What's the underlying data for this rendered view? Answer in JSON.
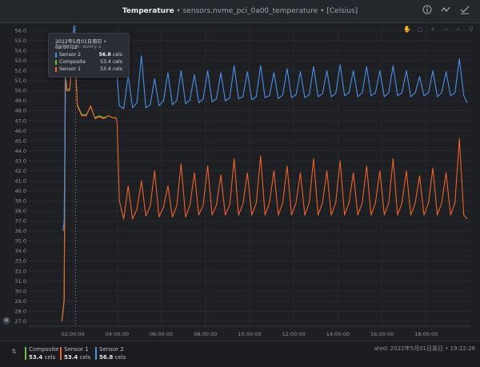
{
  "header": {
    "title": "Temperature",
    "subtitle": " • sensors.nvme_pci_0a00_temperature • [Celsius]"
  },
  "icons": {
    "info": "info-icon",
    "chart_type": "line-chart-icon",
    "check": "check-icon"
  },
  "toolbar": {
    "buttons": [
      "pan-icon",
      "selection-icon",
      "zoom-in-icon",
      "zoom-out-icon",
      "zoom-reset-icon",
      "search-icon"
    ]
  },
  "tooltip": {
    "datetime": "2022年5月01日周日 • 02:07:12",
    "collection": "Collection: every s",
    "rows": [
      {
        "name": "Sensor 2",
        "value": "56.8",
        "unit": "cels",
        "color": "#4b8fe8"
      },
      {
        "name": "Composite",
        "value": "53.4",
        "unit": "cels",
        "color": "#70c22e"
      },
      {
        "name": "Sensor 1",
        "value": "53.4",
        "unit": "cels",
        "color": "#f0622a"
      }
    ]
  },
  "legend": [
    {
      "name": "Composite",
      "value": "53.4",
      "unit": "cels",
      "color": "#70c22e"
    },
    {
      "name": "Sensor 1",
      "value": "53.4",
      "unit": "cels",
      "color": "#f0622a"
    },
    {
      "name": "Sensor 2",
      "value": "56.8",
      "unit": "cels",
      "color": "#4b8fe8"
    }
  ],
  "footer": {
    "updated": "ated: 2022年5月01日周日 • 19:22:28"
  },
  "chart_data": {
    "type": "line",
    "title": "Temperature",
    "ylabel": "",
    "xlabel": "",
    "ylim": [
      26.5,
      56.5
    ],
    "yticks": [
      27.0,
      28.0,
      29.0,
      30.0,
      31.0,
      32.0,
      33.0,
      34.0,
      35.0,
      36.0,
      37.0,
      38.0,
      39.0,
      40.0,
      41.0,
      42.0,
      43.0,
      44.0,
      45.0,
      46.0,
      47.0,
      48.0,
      49.0,
      50.0,
      51.0,
      52.0,
      53.0,
      54.0,
      55.0,
      56.0
    ],
    "xlim": [
      0.0,
      20.0
    ],
    "xticks": [
      {
        "x": 2.0,
        "label": "02:00:00"
      },
      {
        "x": 4.0,
        "label": "04:00:00"
      },
      {
        "x": 6.0,
        "label": "06:00:00"
      },
      {
        "x": 8.0,
        "label": "08:00:00"
      },
      {
        "x": 10.0,
        "label": "10:00:00"
      },
      {
        "x": 12.0,
        "label": "12:00:00"
      },
      {
        "x": 14.0,
        "label": "14:00:00"
      },
      {
        "x": 16.0,
        "label": "16:00:00"
      },
      {
        "x": 18.0,
        "label": "18:00:00"
      }
    ],
    "grid": true,
    "cursor_x": 2.12,
    "series": [
      {
        "name": "Sensor 2",
        "color": "#4b8fe8",
        "points": [
          [
            1.55,
            36
          ],
          [
            1.6,
            37
          ],
          [
            1.68,
            55
          ],
          [
            1.75,
            53
          ],
          [
            1.85,
            52
          ],
          [
            1.95,
            54.8
          ],
          [
            2.0,
            55
          ],
          [
            2.05,
            56.5
          ],
          [
            2.1,
            55.2
          ],
          [
            2.2,
            54
          ],
          [
            2.4,
            53
          ],
          [
            2.6,
            52.5
          ],
          [
            2.8,
            52.5
          ],
          [
            3.0,
            53.5
          ],
          [
            3.2,
            52
          ],
          [
            3.4,
            51.5
          ],
          [
            3.6,
            53
          ],
          [
            3.8,
            51.5
          ],
          [
            3.9,
            51.5
          ],
          [
            4.0,
            51.5
          ],
          [
            4.1,
            48.5
          ],
          [
            4.3,
            48.2
          ],
          [
            4.5,
            51.5
          ],
          [
            4.7,
            48.3
          ],
          [
            4.9,
            48.8
          ],
          [
            5.1,
            53.5
          ],
          [
            5.3,
            48.3
          ],
          [
            5.5,
            48.6
          ],
          [
            5.7,
            51.2
          ],
          [
            5.9,
            48.5
          ],
          [
            6.1,
            49
          ],
          [
            6.3,
            51.8
          ],
          [
            6.5,
            48.6
          ],
          [
            6.7,
            49
          ],
          [
            6.9,
            52
          ],
          [
            7.1,
            48.7
          ],
          [
            7.3,
            49.1
          ],
          [
            7.5,
            51.6
          ],
          [
            7.7,
            48.8
          ],
          [
            7.9,
            49.2
          ],
          [
            8.1,
            52
          ],
          [
            8.3,
            48.9
          ],
          [
            8.5,
            49.2
          ],
          [
            8.7,
            51.8
          ],
          [
            8.9,
            49
          ],
          [
            9.1,
            49.3
          ],
          [
            9.3,
            52.5
          ],
          [
            9.5,
            49.2
          ],
          [
            9.7,
            49.4
          ],
          [
            9.9,
            51.9
          ],
          [
            10.1,
            49.1
          ],
          [
            10.3,
            49.4
          ],
          [
            10.5,
            52.5
          ],
          [
            10.7,
            49.3
          ],
          [
            10.9,
            49.5
          ],
          [
            11.1,
            51.8
          ],
          [
            11.3,
            49.2
          ],
          [
            11.5,
            49.6
          ],
          [
            11.7,
            52.2
          ],
          [
            11.9,
            49.3
          ],
          [
            12.1,
            49.6
          ],
          [
            12.3,
            51.9
          ],
          [
            12.5,
            49.3
          ],
          [
            12.7,
            49.6
          ],
          [
            12.9,
            52.4
          ],
          [
            13.1,
            49.4
          ],
          [
            13.3,
            49.7
          ],
          [
            13.5,
            52.0
          ],
          [
            13.7,
            49.4
          ],
          [
            13.9,
            49.7
          ],
          [
            14.1,
            52.6
          ],
          [
            14.3,
            49.5
          ],
          [
            14.5,
            49.8
          ],
          [
            14.7,
            52.0
          ],
          [
            14.9,
            49.4
          ],
          [
            15.1,
            49.8
          ],
          [
            15.3,
            52.4
          ],
          [
            15.5,
            49.5
          ],
          [
            15.7,
            49.8
          ],
          [
            15.9,
            52.0
          ],
          [
            16.1,
            49.4
          ],
          [
            16.3,
            49.8
          ],
          [
            16.5,
            52.5
          ],
          [
            16.7,
            49.5
          ],
          [
            16.9,
            49.8
          ],
          [
            17.1,
            52.0
          ],
          [
            17.3,
            49.4
          ],
          [
            17.5,
            49.8
          ],
          [
            17.7,
            51.4
          ],
          [
            17.9,
            49.5
          ],
          [
            18.1,
            49.8
          ],
          [
            18.3,
            52.0
          ],
          [
            18.5,
            49.4
          ],
          [
            18.7,
            49.8
          ],
          [
            18.9,
            51.9
          ],
          [
            19.1,
            49.5
          ],
          [
            19.3,
            49.8
          ],
          [
            19.5,
            53.2
          ],
          [
            19.7,
            49.5
          ],
          [
            19.85,
            48.8
          ]
        ]
      },
      {
        "name": "Sensor 1",
        "color": "#f0622a",
        "points": [
          [
            1.5,
            27
          ],
          [
            1.6,
            29
          ],
          [
            1.65,
            52
          ],
          [
            1.72,
            50
          ],
          [
            1.85,
            50
          ],
          [
            1.95,
            53
          ],
          [
            2.0,
            53.4
          ],
          [
            2.1,
            53
          ],
          [
            2.2,
            48.5
          ],
          [
            2.4,
            47.5
          ],
          [
            2.6,
            47.5
          ],
          [
            2.8,
            48.5
          ],
          [
            3.0,
            47.2
          ],
          [
            3.2,
            47.4
          ],
          [
            3.4,
            47.2
          ],
          [
            3.6,
            47.5
          ],
          [
            3.8,
            47.3
          ],
          [
            3.95,
            47.3
          ],
          [
            4.0,
            46.8
          ],
          [
            4.1,
            39
          ],
          [
            4.3,
            37.2
          ],
          [
            4.5,
            40.5
          ],
          [
            4.7,
            37.2
          ],
          [
            4.9,
            38.2
          ],
          [
            5.1,
            41
          ],
          [
            5.3,
            37.5
          ],
          [
            5.5,
            38.5
          ],
          [
            5.7,
            42
          ],
          [
            5.9,
            37.4
          ],
          [
            6.1,
            38.4
          ],
          [
            6.3,
            40.5
          ],
          [
            6.5,
            37.4
          ],
          [
            6.7,
            38.5
          ],
          [
            6.9,
            42.7
          ],
          [
            7.1,
            37.4
          ],
          [
            7.3,
            38.6
          ],
          [
            7.5,
            41.8
          ],
          [
            7.7,
            37.6
          ],
          [
            7.9,
            38.6
          ],
          [
            8.1,
            42.5
          ],
          [
            8.3,
            37.6
          ],
          [
            8.5,
            38.6
          ],
          [
            8.7,
            41.6
          ],
          [
            8.9,
            37.6
          ],
          [
            9.1,
            38.6
          ],
          [
            9.3,
            43.2
          ],
          [
            9.5,
            37.6
          ],
          [
            9.7,
            38.7
          ],
          [
            9.9,
            41.8
          ],
          [
            10.1,
            37.6
          ],
          [
            10.3,
            38.8
          ],
          [
            10.5,
            43.5
          ],
          [
            10.7,
            37.6
          ],
          [
            10.9,
            38.8
          ],
          [
            11.1,
            42
          ],
          [
            11.3,
            37.6
          ],
          [
            11.5,
            38.8
          ],
          [
            11.7,
            42.5
          ],
          [
            11.9,
            37.6
          ],
          [
            12.1,
            38.8
          ],
          [
            12.3,
            41.8
          ],
          [
            12.5,
            37.6
          ],
          [
            12.7,
            38.8
          ],
          [
            12.9,
            43.2
          ],
          [
            13.1,
            37.6
          ],
          [
            13.3,
            38.8
          ],
          [
            13.5,
            42
          ],
          [
            13.7,
            37.6
          ],
          [
            13.9,
            38.8
          ],
          [
            14.1,
            43
          ],
          [
            14.3,
            37.6
          ],
          [
            14.5,
            38.8
          ],
          [
            14.7,
            41.8
          ],
          [
            14.9,
            37.6
          ],
          [
            15.1,
            38.8
          ],
          [
            15.3,
            42.5
          ],
          [
            15.5,
            37.6
          ],
          [
            15.7,
            38.8
          ],
          [
            15.9,
            42
          ],
          [
            16.1,
            37.6
          ],
          [
            16.3,
            38.8
          ],
          [
            16.5,
            43.2
          ],
          [
            16.7,
            37.6
          ],
          [
            16.9,
            38.8
          ],
          [
            17.1,
            42
          ],
          [
            17.3,
            37.6
          ],
          [
            17.5,
            38.8
          ],
          [
            17.7,
            41.5
          ],
          [
            17.9,
            37.6
          ],
          [
            18.1,
            38.8
          ],
          [
            18.3,
            42.3
          ],
          [
            18.5,
            37.6
          ],
          [
            18.7,
            38.8
          ],
          [
            18.9,
            41.8
          ],
          [
            19.1,
            37.6
          ],
          [
            19.3,
            38.8
          ],
          [
            19.5,
            45.2
          ],
          [
            19.7,
            37.6
          ],
          [
            19.85,
            37.2
          ]
        ]
      },
      {
        "name": "Composite",
        "color": "#70c22e",
        "points": [
          [
            1.5,
            27.1
          ],
          [
            1.6,
            29.2
          ],
          [
            1.66,
            51.8
          ],
          [
            1.73,
            50.1
          ],
          [
            1.86,
            50.2
          ],
          [
            1.96,
            53.1
          ],
          [
            2.02,
            53.4
          ],
          [
            2.1,
            53.1
          ],
          [
            2.2,
            48.6
          ],
          [
            2.4,
            47.6
          ],
          [
            2.6,
            47.6
          ],
          [
            2.8,
            48.4
          ],
          [
            3.0,
            47.3
          ],
          [
            3.2,
            47.5
          ],
          [
            3.4,
            47.3
          ],
          [
            3.6,
            47.5
          ],
          [
            3.8,
            47.3
          ],
          [
            3.95,
            47.3
          ]
        ]
      }
    ]
  }
}
